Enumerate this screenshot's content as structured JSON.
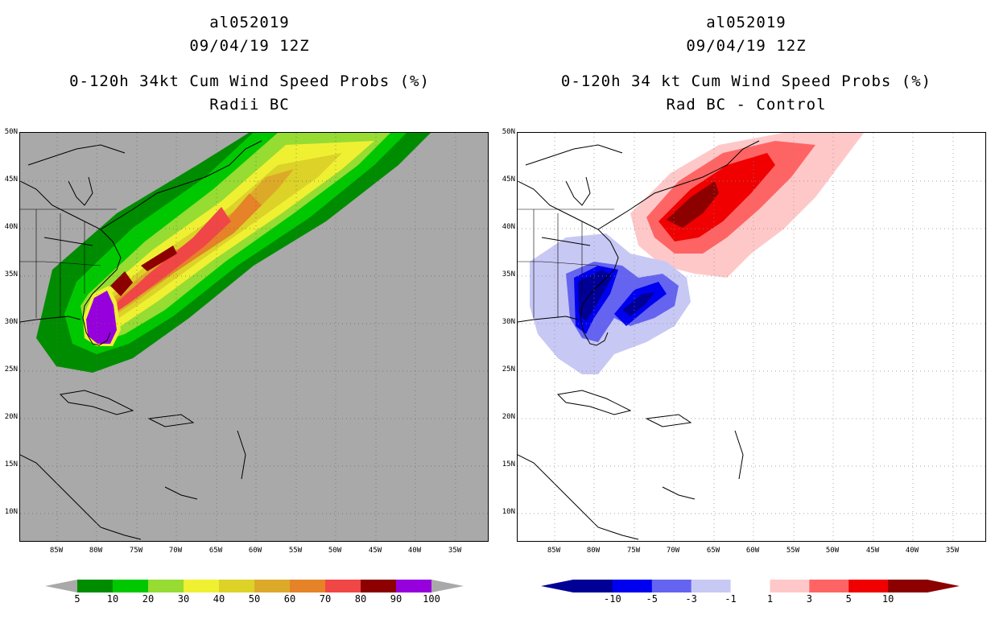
{
  "left": {
    "title1": "al052019",
    "title2": "09/04/19 12Z",
    "title3": "0-120h 34kt Cum Wind Speed Probs (%)",
    "title4": "Radii BC",
    "background": "#a9a9a9",
    "colorbar_labels": [
      "5",
      "10",
      "20",
      "30",
      "40",
      "50",
      "60",
      "70",
      "80",
      "90",
      "100"
    ],
    "colorbar_colors": [
      "#008c00",
      "#00c800",
      "#96dc32",
      "#f0f032",
      "#dcd228",
      "#dcaa28",
      "#e68228",
      "#f04646",
      "#8c0000",
      "#9600dc"
    ]
  },
  "right": {
    "title1": "al052019",
    "title2": "09/04/19 12Z",
    "title3": "0-120h 34 kt Cum Wind Speed Probs (%)",
    "title4": "Rad BC - Control",
    "background": "#ffffff",
    "colorbar_labels": [
      "-10",
      "-5",
      "-3",
      "-1",
      "1",
      "3",
      "5",
      "10"
    ],
    "colorbar_colors": [
      "#000096",
      "#0000f0",
      "#6464f0",
      "#c8c8f5",
      "#ffffff",
      "#ffc8c8",
      "#ff6464",
      "#f00000",
      "#8c0000"
    ]
  },
  "lat_labels": [
    "50N",
    "45N",
    "40N",
    "35N",
    "30N",
    "25N",
    "20N",
    "15N",
    "10N"
  ],
  "lon_labels": [
    "85W",
    "80W",
    "75W",
    "70W",
    "65W",
    "60W",
    "55W",
    "50W",
    "45W",
    "40W",
    "35W"
  ]
}
